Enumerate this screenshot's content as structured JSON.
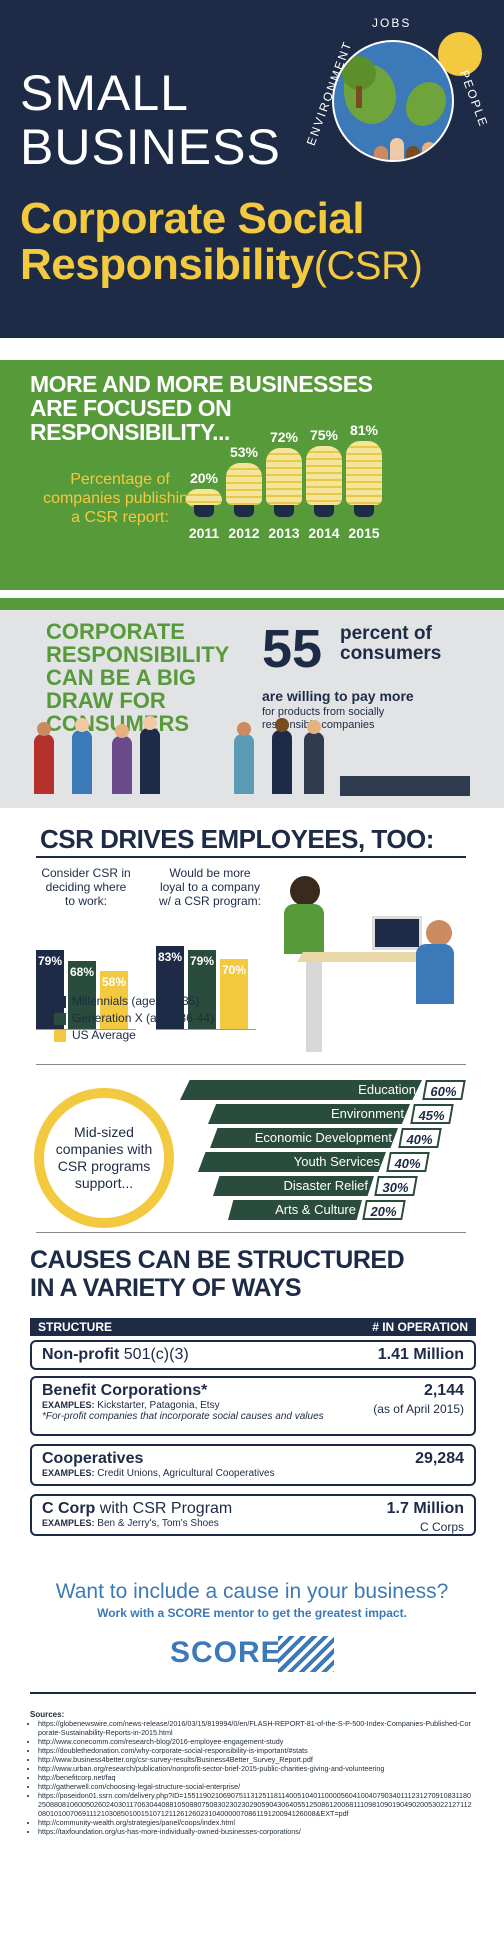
{
  "header": {
    "small_line1": "SMALL",
    "small_line2": "BUSINESS",
    "csr_line1": "Corporate Social",
    "csr_line2": "Responsibility",
    "csr_paren": "(CSR)",
    "globe_labels": {
      "jobs": "JOBS",
      "people": "PEOPLE",
      "environment": "ENVIRONMENT"
    }
  },
  "growth": {
    "title_line1": "MORE AND MORE BUSINESSES",
    "title_line2": "ARE FOCUSED ON",
    "title_line3": "RESPONSIBILITY...",
    "label_line1": "Percentage of",
    "label_line2": "companies publishing",
    "label_line3": "a CSR report:",
    "bars": [
      {
        "year": "2011",
        "pct": "20%",
        "value": 20
      },
      {
        "year": "2012",
        "pct": "53%",
        "value": 53
      },
      {
        "year": "2013",
        "pct": "72%",
        "value": 72
      },
      {
        "year": "2014",
        "pct": "75%",
        "value": 75
      },
      {
        "year": "2015",
        "pct": "81%",
        "value": 81
      }
    ]
  },
  "consumers": {
    "title_line1": "CORPORATE",
    "title_line2": "RESPONSIBILITY",
    "title_line3": "CAN BE A BIG",
    "title_line4": "DRAW FOR",
    "title_line5": "CONSUMERS",
    "big_number": "55",
    "percent_of": "percent of",
    "consumers_word": "consumers",
    "willing": "are willing to pay more",
    "products_line1": "for products from socially",
    "products_line2": "responsible companies"
  },
  "employees": {
    "title": "CSR DRIVES EMPLOYEES, TOO:",
    "q1_line1": "Consider CSR in",
    "q1_line2": "deciding where",
    "q1_line3": "to work:",
    "q2_line1": "Would be more",
    "q2_line2": "loyal to a company",
    "q2_line3": "w/ a CSR program:",
    "group1": [
      {
        "label": "79%",
        "value": 79
      },
      {
        "label": "68%",
        "value": 68
      },
      {
        "label": "58%",
        "value": 58
      }
    ],
    "group2": [
      {
        "label": "83%",
        "value": 83
      },
      {
        "label": "79%",
        "value": 79
      },
      {
        "label": "70%",
        "value": 70
      }
    ],
    "legend": [
      "Millennials (ages 27-35)",
      "Generation X (ages 36-44)",
      "US Average"
    ],
    "colors": {
      "millennials": "#1e2b46",
      "genx": "#2a4c3c",
      "us": "#f2c93f"
    }
  },
  "support": {
    "center_line1": "Mid-sized",
    "center_line2": "companies with",
    "center_line3": "CSR programs",
    "center_line4": "support...",
    "items": [
      {
        "label": "Education",
        "pct": "60%",
        "value": 60
      },
      {
        "label": "Environment",
        "pct": "45%",
        "value": 45
      },
      {
        "label": "Economic Development",
        "pct": "40%",
        "value": 40
      },
      {
        "label": "Youth Services",
        "pct": "40%",
        "value": 40
      },
      {
        "label": "Disaster Relief",
        "pct": "30%",
        "value": 30
      },
      {
        "label": "Arts & Culture",
        "pct": "20%",
        "value": 20
      }
    ]
  },
  "causes": {
    "title_line1": "CAUSES CAN BE STRUCTURED",
    "title_line2": "IN A VARIETY OF WAYS",
    "col_structure": "STRUCTURE",
    "col_operation": "# IN OPERATION",
    "rows": [
      {
        "name": "Non-profit",
        "name_suffix": "501(c)(3)",
        "value": "1.41 Million",
        "value_sub": "",
        "examples_label": "",
        "examples": "",
        "note": ""
      },
      {
        "name": "Benefit Corporations*",
        "name_suffix": "",
        "value": "2,144",
        "value_sub": "(as of April 2015)",
        "examples_label": "EXAMPLES:",
        "examples": "Kickstarter, Patagonia, Etsy",
        "note": "*For-profit companies that incorporate social causes and values"
      },
      {
        "name": "Cooperatives",
        "name_suffix": "",
        "value": "29,284",
        "value_sub": "",
        "examples_label": "EXAMPLES:",
        "examples": "Credit Unions, Agricultural Cooperatives",
        "note": ""
      },
      {
        "name": "C Corp",
        "name_suffix": "with CSR Program",
        "value": "1.7 Million",
        "value_sub": "C Corps",
        "examples_label": "EXAMPLES:",
        "examples": "Ben & Jerry's, Tom's Shoes",
        "note": ""
      }
    ]
  },
  "cta": {
    "question": "Want to include a cause in your business?",
    "work": "Work with a SCORE mentor to get the greatest impact.",
    "logo": "SCORE"
  },
  "sources": {
    "title": "Sources:",
    "items": [
      "https://globenewswire.com/news-release/2016/03/15/819994/0/en/FLASH-REPORT-81-of-the-S-P-500-Index-Companies-Published-Corporate-Sustainability-Reports-in-2015.html",
      "http://www.conecomm.com/research-blog/2016-employee-engagement-study",
      "https://doublethedonation.com/why-corporate-social-responsibility-is-important/#stats",
      "http://www.business4better.org/csr-survey-results/Business4Better_Survey_Report.pdf",
      "http://www.urban.org/research/publication/nonprofit-sector-brief-2015-public-charities-giving-and-volunteering",
      "http://benefitcorp.net/faq",
      "http://gatherwell.com/choosing-legal-structure-social-enterprise/",
      "https://poseidon01.ssrn.com/delivery.php?ID=155119021069075113125118114005104011000056041004079034011123127091083118025088081060050260240301170630440881050880750830230230290590430640551250861200681110981090190490200530221271120801010070691112103085010015107121126126023104000007086119120094126008&EXT=pdf",
      "http://community-wealth.org/strategies/panel/coops/index.html",
      "https://taxfoundation.org/us-has-more-individually-owned-businesses-corporations/"
    ]
  }
}
